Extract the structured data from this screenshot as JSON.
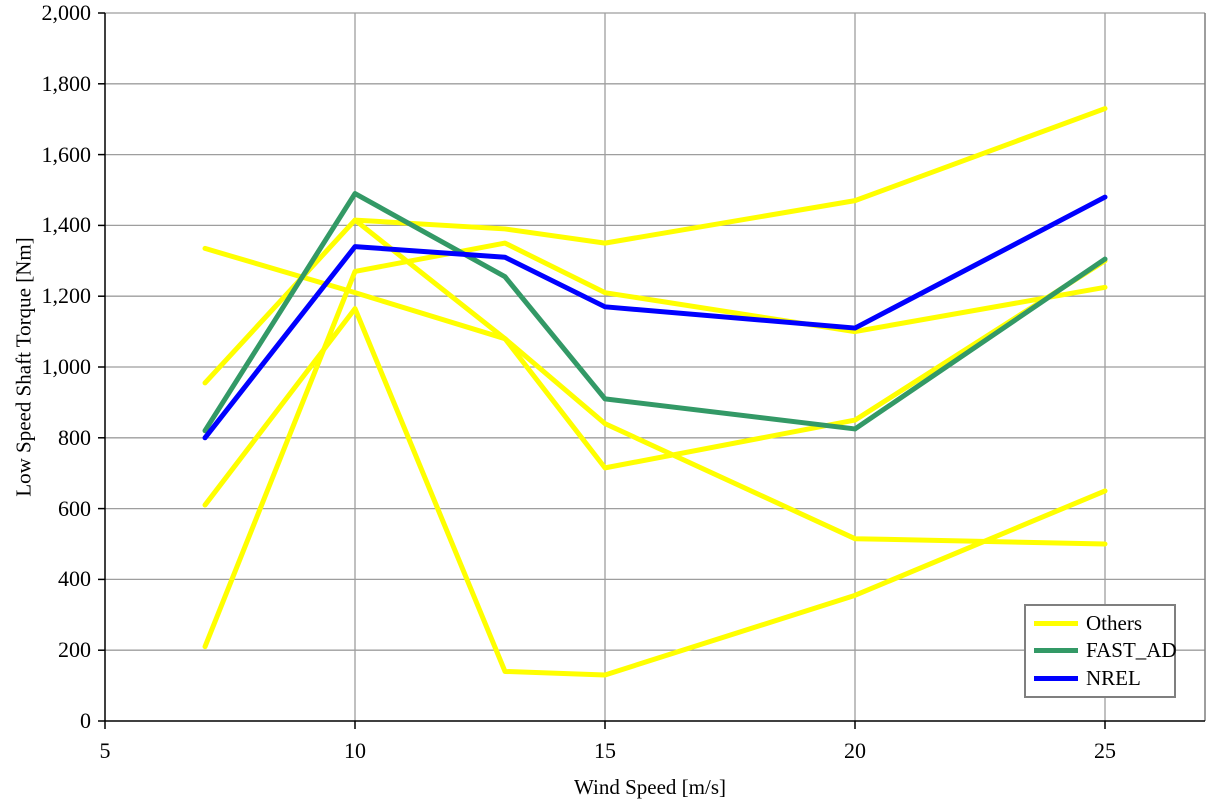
{
  "chart_data": {
    "type": "line",
    "x": [
      7,
      10,
      13,
      15,
      20,
      25
    ],
    "xlabel": "Wind Speed [m/s]",
    "ylabel": "Low Speed Shaft Torque [Nm]",
    "xlim": [
      5,
      27
    ],
    "ylim": [
      0,
      2000
    ],
    "x_ticks": [
      5,
      10,
      15,
      20,
      25
    ],
    "x_tick_labels": [
      "5",
      "10",
      "15",
      "20",
      "25"
    ],
    "y_ticks": [
      0,
      200,
      400,
      600,
      800,
      1000,
      1200,
      1400,
      1600,
      1800,
      2000
    ],
    "y_tick_labels": [
      "0",
      "200",
      "400",
      "600",
      "800",
      "1,000",
      "1,200",
      "1,400",
      "1,600",
      "1,800",
      "2,000"
    ],
    "grid": true,
    "legend_position": "bottom-right",
    "series": [
      {
        "name": "Others",
        "color": "#FFFF00",
        "values": [
          955,
          1415,
          1390,
          1350,
          1470,
          1730
        ]
      },
      {
        "name": "Others",
        "color": "#FFFF00",
        "values": [
          null,
          1415,
          1080,
          715,
          850,
          1300
        ]
      },
      {
        "name": "Others",
        "color": "#FFFF00",
        "values": [
          1335,
          1210,
          1080,
          840,
          515,
          500
        ]
      },
      {
        "name": "Others",
        "color": "#FFFF00",
        "values": [
          610,
          1165,
          140,
          130,
          355,
          650
        ]
      },
      {
        "name": "Others",
        "color": "#FFFF00",
        "values": [
          210,
          1270,
          1350,
          1210,
          1100,
          1225
        ]
      },
      {
        "name": "FAST_AD",
        "color": "#339966",
        "values": [
          820,
          1490,
          1255,
          910,
          825,
          1305
        ]
      },
      {
        "name": "NREL",
        "color": "#0000FF",
        "values": [
          800,
          1340,
          1310,
          1170,
          1110,
          1480
        ]
      }
    ],
    "legend": [
      {
        "label": "Others",
        "color": "#FFFF00"
      },
      {
        "label": "FAST_AD",
        "color": "#339966"
      },
      {
        "label": "NREL",
        "color": "#0000FF"
      }
    ]
  },
  "style": {
    "gridline_color": "#9e9e9e",
    "border_color": "#7f7f7f",
    "axis_color": "#000000",
    "background": "#ffffff",
    "line_width": 5
  }
}
